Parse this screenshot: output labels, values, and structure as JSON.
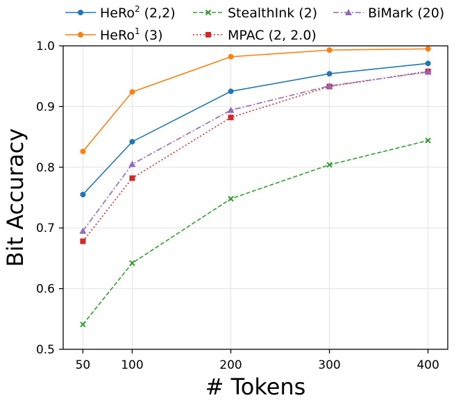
{
  "chart_data": {
    "type": "line",
    "title": "",
    "xlabel": "# Tokens",
    "ylabel": "Bit Accuracy",
    "x": [
      50,
      100,
      200,
      300,
      400
    ],
    "xlim": [
      30,
      420
    ],
    "ylim": [
      0.5,
      1.0
    ],
    "xticks": [
      50,
      100,
      200,
      300,
      400
    ],
    "yticks": [
      0.5,
      0.6,
      0.7,
      0.8,
      0.9,
      1.0
    ],
    "xtick_labels": [
      "50",
      "100",
      "200",
      "300",
      "400"
    ],
    "ytick_labels": [
      "0.5",
      "0.6",
      "0.7",
      "0.8",
      "0.9",
      "1.0"
    ],
    "grid": true,
    "legend_position": "top, above plot",
    "series": [
      {
        "name": "HeRo",
        "sup": "2",
        "suffix": " (2,2)",
        "color": "#1f77b4",
        "marker": "circle",
        "dash": "solid",
        "values": [
          0.755,
          0.842,
          0.925,
          0.954,
          0.971
        ]
      },
      {
        "name": "HeRo",
        "sup": "1",
        "suffix": " (3)",
        "color": "#ff7f0e",
        "marker": "circle",
        "dash": "solid",
        "values": [
          0.826,
          0.924,
          0.982,
          0.993,
          0.995
        ]
      },
      {
        "name": "StealthInk",
        "sup": "",
        "suffix": " (2)",
        "color": "#2ca02c",
        "marker": "x",
        "dash": "dashed",
        "values": [
          0.541,
          0.642,
          0.748,
          0.804,
          0.844
        ]
      },
      {
        "name": "MPAC",
        "sup": "",
        "suffix": " (2, 2.0)",
        "color": "#d62728",
        "marker": "square",
        "dash": "dotted",
        "values": [
          0.678,
          0.782,
          0.882,
          0.933,
          0.958
        ]
      },
      {
        "name": "BiMark",
        "sup": "",
        "suffix": " (20)",
        "color": "#9467bd",
        "marker": "triangle",
        "dash": "dashdot",
        "values": [
          0.695,
          0.805,
          0.894,
          0.934,
          0.957
        ]
      }
    ]
  }
}
